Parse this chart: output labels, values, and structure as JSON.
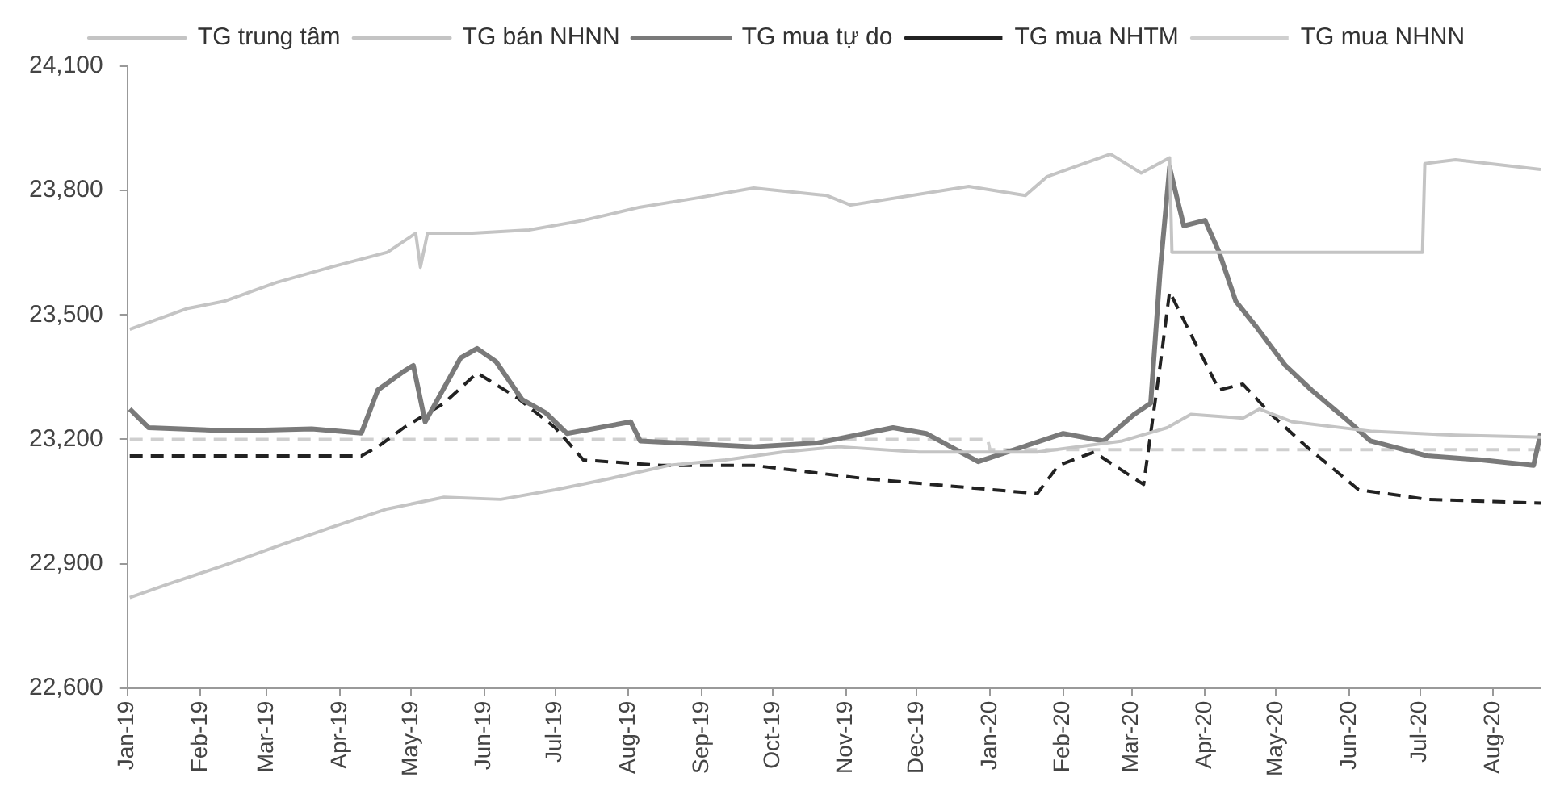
{
  "chart_data": {
    "type": "line",
    "legend": "top",
    "grid": false,
    "marker": "none",
    "xlim": [
      "2019-01-01",
      "2020-08-21"
    ],
    "xticks": [
      {
        "value": "2019-01-01",
        "label": "Jan-19"
      },
      {
        "value": "2019-02-01",
        "label": "Feb-19"
      },
      {
        "value": "2019-03-01",
        "label": "Mar-19"
      },
      {
        "value": "2019-04-01",
        "label": "Apr-19"
      },
      {
        "value": "2019-05-01",
        "label": "May-19"
      },
      {
        "value": "2019-06-01",
        "label": "Jun-19"
      },
      {
        "value": "2019-07-01",
        "label": "Jul-19"
      },
      {
        "value": "2019-08-01",
        "label": "Aug-19"
      },
      {
        "value": "2019-09-01",
        "label": "Sep-19"
      },
      {
        "value": "2019-10-01",
        "label": "Oct-19"
      },
      {
        "value": "2019-11-01",
        "label": "Nov-19"
      },
      {
        "value": "2019-12-01",
        "label": "Dec-19"
      },
      {
        "value": "2020-01-01",
        "label": "Jan-20"
      },
      {
        "value": "2020-02-01",
        "label": "Feb-20"
      },
      {
        "value": "2020-03-01",
        "label": "Mar-20"
      },
      {
        "value": "2020-04-01",
        "label": "Apr-20"
      },
      {
        "value": "2020-05-01",
        "label": "May-20"
      },
      {
        "value": "2020-06-01",
        "label": "Jun-20"
      },
      {
        "value": "2020-07-01",
        "label": "Jul-20"
      },
      {
        "value": "2020-08-01",
        "label": "Aug-20"
      }
    ],
    "ylim": [
      22600,
      24100
    ],
    "yticks": [
      {
        "value": 22600,
        "label": "22,600"
      },
      {
        "value": 22900,
        "label": "22,900"
      },
      {
        "value": 23200,
        "label": "23,200"
      },
      {
        "value": 23500,
        "label": "23,500"
      },
      {
        "value": 23800,
        "label": "23,800"
      },
      {
        "value": 24100,
        "label": "24,100"
      }
    ],
    "series": [
      {
        "name": "TG trung tâm",
        "type": "line",
        "color": "#c4c4c4",
        "line_style": "solid",
        "x": [
          "2019-01-02",
          "2019-01-18",
          "2019-02-11",
          "2019-03-05",
          "2019-03-28",
          "2019-04-21",
          "2019-05-15",
          "2019-06-08",
          "2019-07-01",
          "2019-07-24",
          "2019-08-18",
          "2019-09-11",
          "2019-10-05",
          "2019-10-29",
          "2019-12-02",
          "2020-01-21",
          "2020-02-26",
          "2020-03-16",
          "2020-03-26",
          "2020-04-17",
          "2020-04-24",
          "2020-05-08",
          "2020-06-11",
          "2020-07-16",
          "2020-08-21"
        ],
        "values": [
          22818,
          22850,
          22896,
          22941,
          22987,
          23032,
          23060,
          23055,
          23078,
          23105,
          23137,
          23150,
          23169,
          23182,
          23169,
          23169,
          23196,
          23228,
          23260,
          23251,
          23273,
          23242,
          23219,
          23210,
          23205
        ]
      },
      {
        "name": "TG bán NHNN",
        "type": "line",
        "color": "#c4c4c4",
        "line_style": "solid",
        "x": [
          "2019-01-02",
          "2019-01-26",
          "2019-02-11",
          "2019-03-05",
          "2019-03-28",
          "2019-04-21",
          "2019-05-03",
          "2019-05-05",
          "2019-05-08",
          "2019-05-27",
          "2019-06-20",
          "2019-07-13",
          "2019-08-06",
          "2019-08-31",
          "2019-09-23",
          "2019-10-24",
          "2019-11-03",
          "2019-12-23",
          "2020-01-16",
          "2020-01-25",
          "2020-02-21",
          "2020-03-05",
          "2020-03-17",
          "2020-03-18",
          "2020-07-02",
          "2020-07-03",
          "2020-07-16",
          "2020-08-21"
        ],
        "values": [
          23465,
          23515,
          23533,
          23578,
          23615,
          23651,
          23697,
          23615,
          23697,
          23697,
          23705,
          23728,
          23760,
          23783,
          23806,
          23788,
          23765,
          23810,
          23788,
          23833,
          23888,
          23842,
          23879,
          23651,
          23651,
          23865,
          23874,
          23851
        ]
      },
      {
        "name": "TG mua tự do",
        "type": "line",
        "color": "#7a7a7a",
        "line_style": "solid",
        "x": [
          "2019-01-02",
          "2019-01-10",
          "2019-02-15",
          "2019-03-20",
          "2019-04-10",
          "2019-04-17",
          "2019-04-28",
          "2019-05-02",
          "2019-05-07",
          "2019-05-22",
          "2019-05-29",
          "2019-06-06",
          "2019-06-17",
          "2019-06-27",
          "2019-07-06",
          "2019-08-02",
          "2019-08-06",
          "2019-09-23",
          "2019-10-20",
          "2019-11-21",
          "2019-12-05",
          "2019-12-27",
          "2020-02-01",
          "2020-02-18",
          "2020-03-02",
          "2020-03-09",
          "2020-03-13",
          "2020-03-17",
          "2020-03-23",
          "2020-04-01",
          "2020-04-07",
          "2020-04-14",
          "2020-04-23",
          "2020-05-05",
          "2020-05-16",
          "2020-06-01",
          "2020-06-10",
          "2020-07-04",
          "2020-07-27",
          "2020-08-18",
          "2020-08-21"
        ],
        "values": [
          23273,
          23228,
          23220,
          23225,
          23215,
          23319,
          23364,
          23378,
          23242,
          23396,
          23419,
          23387,
          23296,
          23264,
          23214,
          23242,
          23196,
          23182,
          23191,
          23228,
          23214,
          23146,
          23214,
          23196,
          23260,
          23287,
          23606,
          23856,
          23715,
          23728,
          23651,
          23533,
          23469,
          23378,
          23319,
          23242,
          23196,
          23160,
          23150,
          23137,
          23214
        ]
      },
      {
        "name": "TG mua NHTM",
        "type": "line",
        "color": "#222222",
        "line_style": "dashed",
        "x": [
          "2019-01-02",
          "2019-04-10",
          "2019-04-17",
          "2019-04-28",
          "2019-05-15",
          "2019-05-29",
          "2019-06-15",
          "2019-07-01",
          "2019-07-13",
          "2019-08-15",
          "2019-09-23",
          "2019-11-09",
          "2020-01-21",
          "2020-01-30",
          "2020-02-14",
          "2020-03-06",
          "2020-03-13",
          "2020-03-17",
          "2020-03-27",
          "2020-04-07",
          "2020-04-17",
          "2020-04-29",
          "2020-05-14",
          "2020-06-05",
          "2020-07-04",
          "2020-08-21"
        ],
        "values": [
          23160,
          23160,
          23182,
          23228,
          23287,
          23360,
          23300,
          23228,
          23150,
          23137,
          23137,
          23105,
          23069,
          23137,
          23169,
          23091,
          23378,
          23556,
          23442,
          23319,
          23333,
          23260,
          23182,
          23078,
          23055,
          23046
        ]
      },
      {
        "name": "TG mua NHNN",
        "type": "line",
        "color": "#cfcfcf",
        "line_style": "dashed",
        "x": [
          "2019-01-02",
          "2019-12-31",
          "2020-01-01",
          "2020-08-21"
        ],
        "values": [
          23200,
          23200,
          23175,
          23175
        ]
      }
    ]
  }
}
